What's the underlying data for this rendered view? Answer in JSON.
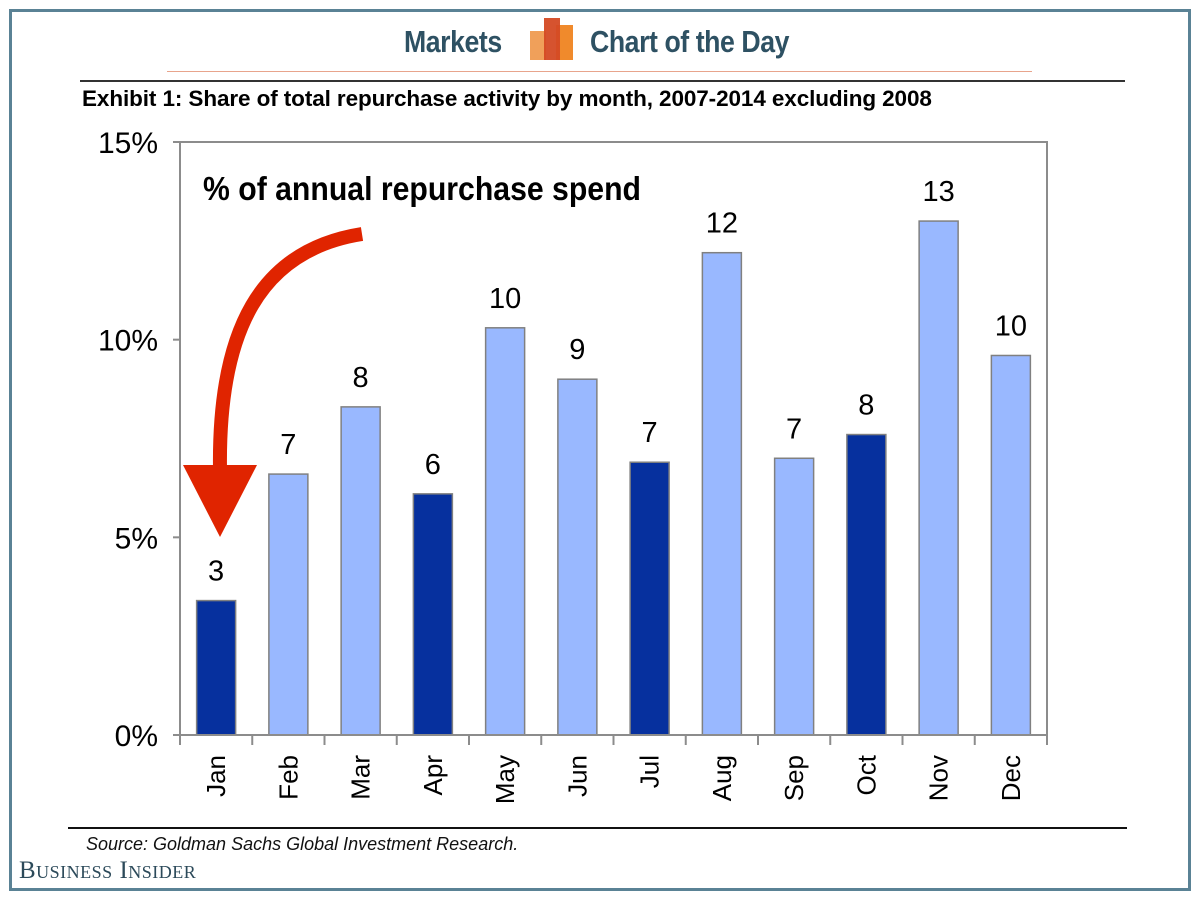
{
  "header": {
    "left_label": "Markets",
    "right_label": "Chart of the Day",
    "logo_icon": "bar-chart-icon",
    "colors": {
      "text": "#2e5163",
      "logo_left": "#f0a05a",
      "logo_mid": "#d44a24",
      "logo_right": "#f08a2c",
      "rule": "#e8a48c"
    }
  },
  "exhibit_title": "Exhibit 1: Share of total repurchase activity by month, 2007-2014 excluding 2008",
  "source": "Source: Goldman Sachs Global Investment Research.",
  "brand": "Business Insider",
  "chart_data": {
    "type": "bar",
    "title": "Exhibit 1: Share of total repurchase activity by month, 2007-2014 excluding 2008",
    "inset_label": "% of annual repurchase spend",
    "xlabel": "",
    "ylabel": "% of annual repurchase spend",
    "categories": [
      "Jan",
      "Feb",
      "Mar",
      "Apr",
      "May",
      "Jun",
      "Jul",
      "Aug",
      "Sep",
      "Oct",
      "Nov",
      "Dec"
    ],
    "values": [
      3.4,
      6.6,
      8.3,
      6.1,
      10.3,
      9.0,
      6.9,
      12.2,
      7.0,
      7.6,
      13.0,
      9.6
    ],
    "data_labels": [
      "3",
      "7",
      "8",
      "6",
      "10",
      "9",
      "7",
      "12",
      "7",
      "8",
      "13",
      "10"
    ],
    "highlighted": [
      true,
      false,
      false,
      true,
      false,
      false,
      true,
      false,
      false,
      true,
      false,
      false
    ],
    "ylim": [
      0,
      15
    ],
    "yticks": [
      0,
      5,
      10,
      15
    ],
    "ytick_labels": [
      "0%",
      "5%",
      "10%",
      "15%"
    ],
    "grid": false,
    "legend": "none",
    "colors": {
      "highlight": "#06309e",
      "normal": "#99b8ff",
      "bar_edge": "#808080",
      "axis": "#8c8c8c",
      "annotation_arrow": "#e02400"
    },
    "annotation": {
      "type": "curved-arrow",
      "points_to": "Jan",
      "from": "inset_label"
    }
  }
}
